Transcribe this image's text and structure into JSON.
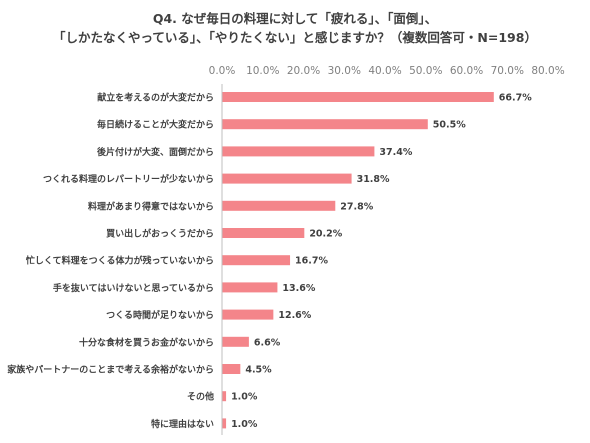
{
  "chart_data": {
    "type": "bar",
    "orientation": "horizontal",
    "title_lines": [
      "Q4. なぜ毎日の料理に対して「疲れる」、「面倒」、",
      "「しかたなくやっている」、「やりたくない」と感じますか？（複数回答可・N=198）"
    ],
    "categories": [
      "献立を考えるのが大変だから",
      "毎日続けることが大変だから",
      "後片付けが大変、面倒だから",
      "つくれる料理のレパートリーが少ないから",
      "料理があまり得意ではないから",
      "買い出しがおっくうだから",
      "忙しくて料理をつくる体力が残っていないから",
      "手を抜いてはいけないと思っているから",
      "つくる時間が足りないから",
      "十分な食材を買うお金がないから",
      "家族やパートナーのことまで考える余裕がないから",
      "その他",
      "特に理由はない"
    ],
    "values": [
      66.7,
      50.5,
      37.4,
      31.8,
      27.8,
      20.2,
      16.7,
      13.6,
      12.6,
      6.6,
      4.5,
      1.0,
      1.0
    ],
    "value_labels": [
      "66.7%",
      "50.5%",
      "37.4%",
      "31.8%",
      "27.8%",
      "20.2%",
      "16.7%",
      "13.6%",
      "12.6%",
      "6.6%",
      "4.5%",
      "1.0%",
      "1.0%"
    ],
    "x_ticks": [
      0,
      10,
      20,
      30,
      40,
      50,
      60,
      70,
      80
    ],
    "x_tick_labels": [
      "0.0%",
      "10.0%",
      "20.0%",
      "30.0%",
      "40.0%",
      "50.0%",
      "60.0%",
      "70.0%",
      "80.0%"
    ],
    "xlim": [
      0,
      80
    ],
    "xlabel": "",
    "ylabel": "",
    "grid": false,
    "bar_color": "#f4858a",
    "axis_color": "#bfbfbf",
    "text_color": "#404040",
    "tick_color": "#808080"
  }
}
